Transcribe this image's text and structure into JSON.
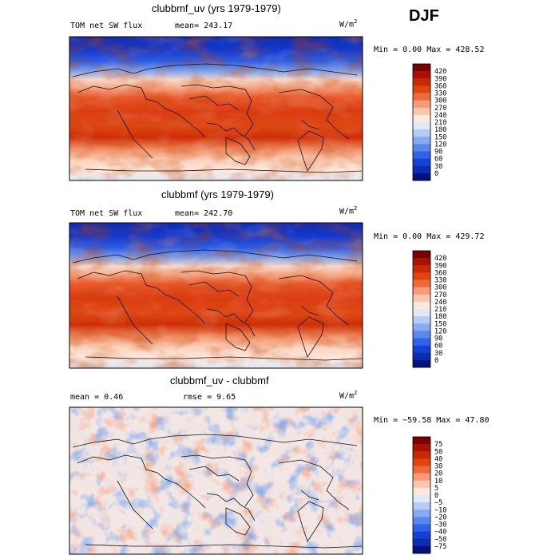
{
  "season": "DJF",
  "panels": [
    {
      "title": "clubbmf_uv (yrs 1979-1979)",
      "left_label": "TOM net SW flux",
      "stat_label": "mean= 243.17",
      "units": "W/m",
      "units_exp": "2",
      "minmax": "Min =    0.00 Max =  428.52",
      "colorbar": {
        "labels": [
          "420",
          "390",
          "360",
          "330",
          "300",
          "270",
          "240",
          "210",
          "180",
          "150",
          "120",
          "90",
          "60",
          "30",
          "0"
        ],
        "colors": [
          "#7a0000",
          "#a81200",
          "#c82a00",
          "#e04410",
          "#ef6a3a",
          "#f79a78",
          "#fcc6ac",
          "#fde9dd",
          "#dfe9f8",
          "#b5cdf3",
          "#86acef",
          "#5a87ea",
          "#2f62e6",
          "#1540d4",
          "#0a2eb0",
          "#04127e"
        ]
      }
    },
    {
      "title": "clubbmf (yrs 1979-1979)",
      "left_label": "TOM net SW flux",
      "stat_label": "mean= 242.70",
      "units": "W/m",
      "units_exp": "2",
      "minmax": "Min =    0.00 Max =  429.72",
      "colorbar": {
        "labels": [
          "420",
          "390",
          "360",
          "330",
          "300",
          "270",
          "240",
          "210",
          "180",
          "150",
          "120",
          "90",
          "60",
          "30",
          "0"
        ],
        "colors": [
          "#7a0000",
          "#a81200",
          "#c82a00",
          "#e04410",
          "#ef6a3a",
          "#f79a78",
          "#fcc6ac",
          "#fde9dd",
          "#dfe9f8",
          "#b5cdf3",
          "#86acef",
          "#5a87ea",
          "#2f62e6",
          "#1540d4",
          "#0a2eb0",
          "#04127e"
        ]
      }
    },
    {
      "title": "clubbmf_uv - clubbmf",
      "left_label": "mean =    0.46",
      "stat_label": "rmse =    9.65",
      "units": "W/m",
      "units_exp": "2",
      "minmax": "Min = −59.58 Max =   47.80",
      "colorbar": {
        "labels": [
          "75",
          "50",
          "40",
          "30",
          "20",
          "10",
          "5",
          "0",
          "−5",
          "−10",
          "−20",
          "−30",
          "−40",
          "−50",
          "−75"
        ],
        "colors": [
          "#7a0000",
          "#a81200",
          "#c82a00",
          "#e04410",
          "#ef6a3a",
          "#f79a78",
          "#fcc6ac",
          "#fde9dd",
          "#dfe9f8",
          "#b5cdf3",
          "#86acef",
          "#5a87ea",
          "#2f62e6",
          "#1540d4",
          "#0a2eb0",
          "#04127e"
        ]
      }
    }
  ],
  "chart_data": [
    {
      "type": "heatmap",
      "title": "clubbmf_uv (yrs 1979-1979)",
      "variable": "TOM net SW flux",
      "mean": 243.17,
      "min": 0.0,
      "max": 428.52,
      "colorbar_levels": [
        0,
        30,
        60,
        90,
        120,
        150,
        180,
        210,
        240,
        270,
        300,
        330,
        360,
        390,
        420
      ],
      "zonal_profile_from_north_to_south": [
        20,
        60,
        130,
        230,
        330,
        380,
        370,
        360,
        350,
        370,
        380,
        300,
        200
      ]
    },
    {
      "type": "heatmap",
      "title": "clubbmf (yrs 1979-1979)",
      "variable": "TOM net SW flux",
      "mean": 242.7,
      "min": 0.0,
      "max": 429.72,
      "colorbar_levels": [
        0,
        30,
        60,
        90,
        120,
        150,
        180,
        210,
        240,
        270,
        300,
        330,
        360,
        390,
        420
      ],
      "zonal_profile_from_north_to_south": [
        20,
        60,
        130,
        230,
        330,
        380,
        370,
        360,
        350,
        370,
        380,
        300,
        200
      ]
    },
    {
      "type": "heatmap",
      "title": "clubbmf_uv - clubbmf",
      "mean": 0.46,
      "rmse": 9.65,
      "min": -59.58,
      "max": 47.8,
      "colorbar_levels": [
        -75,
        -50,
        -40,
        -30,
        -20,
        -10,
        -5,
        0,
        5,
        10,
        20,
        30,
        40,
        50,
        75
      ]
    }
  ]
}
